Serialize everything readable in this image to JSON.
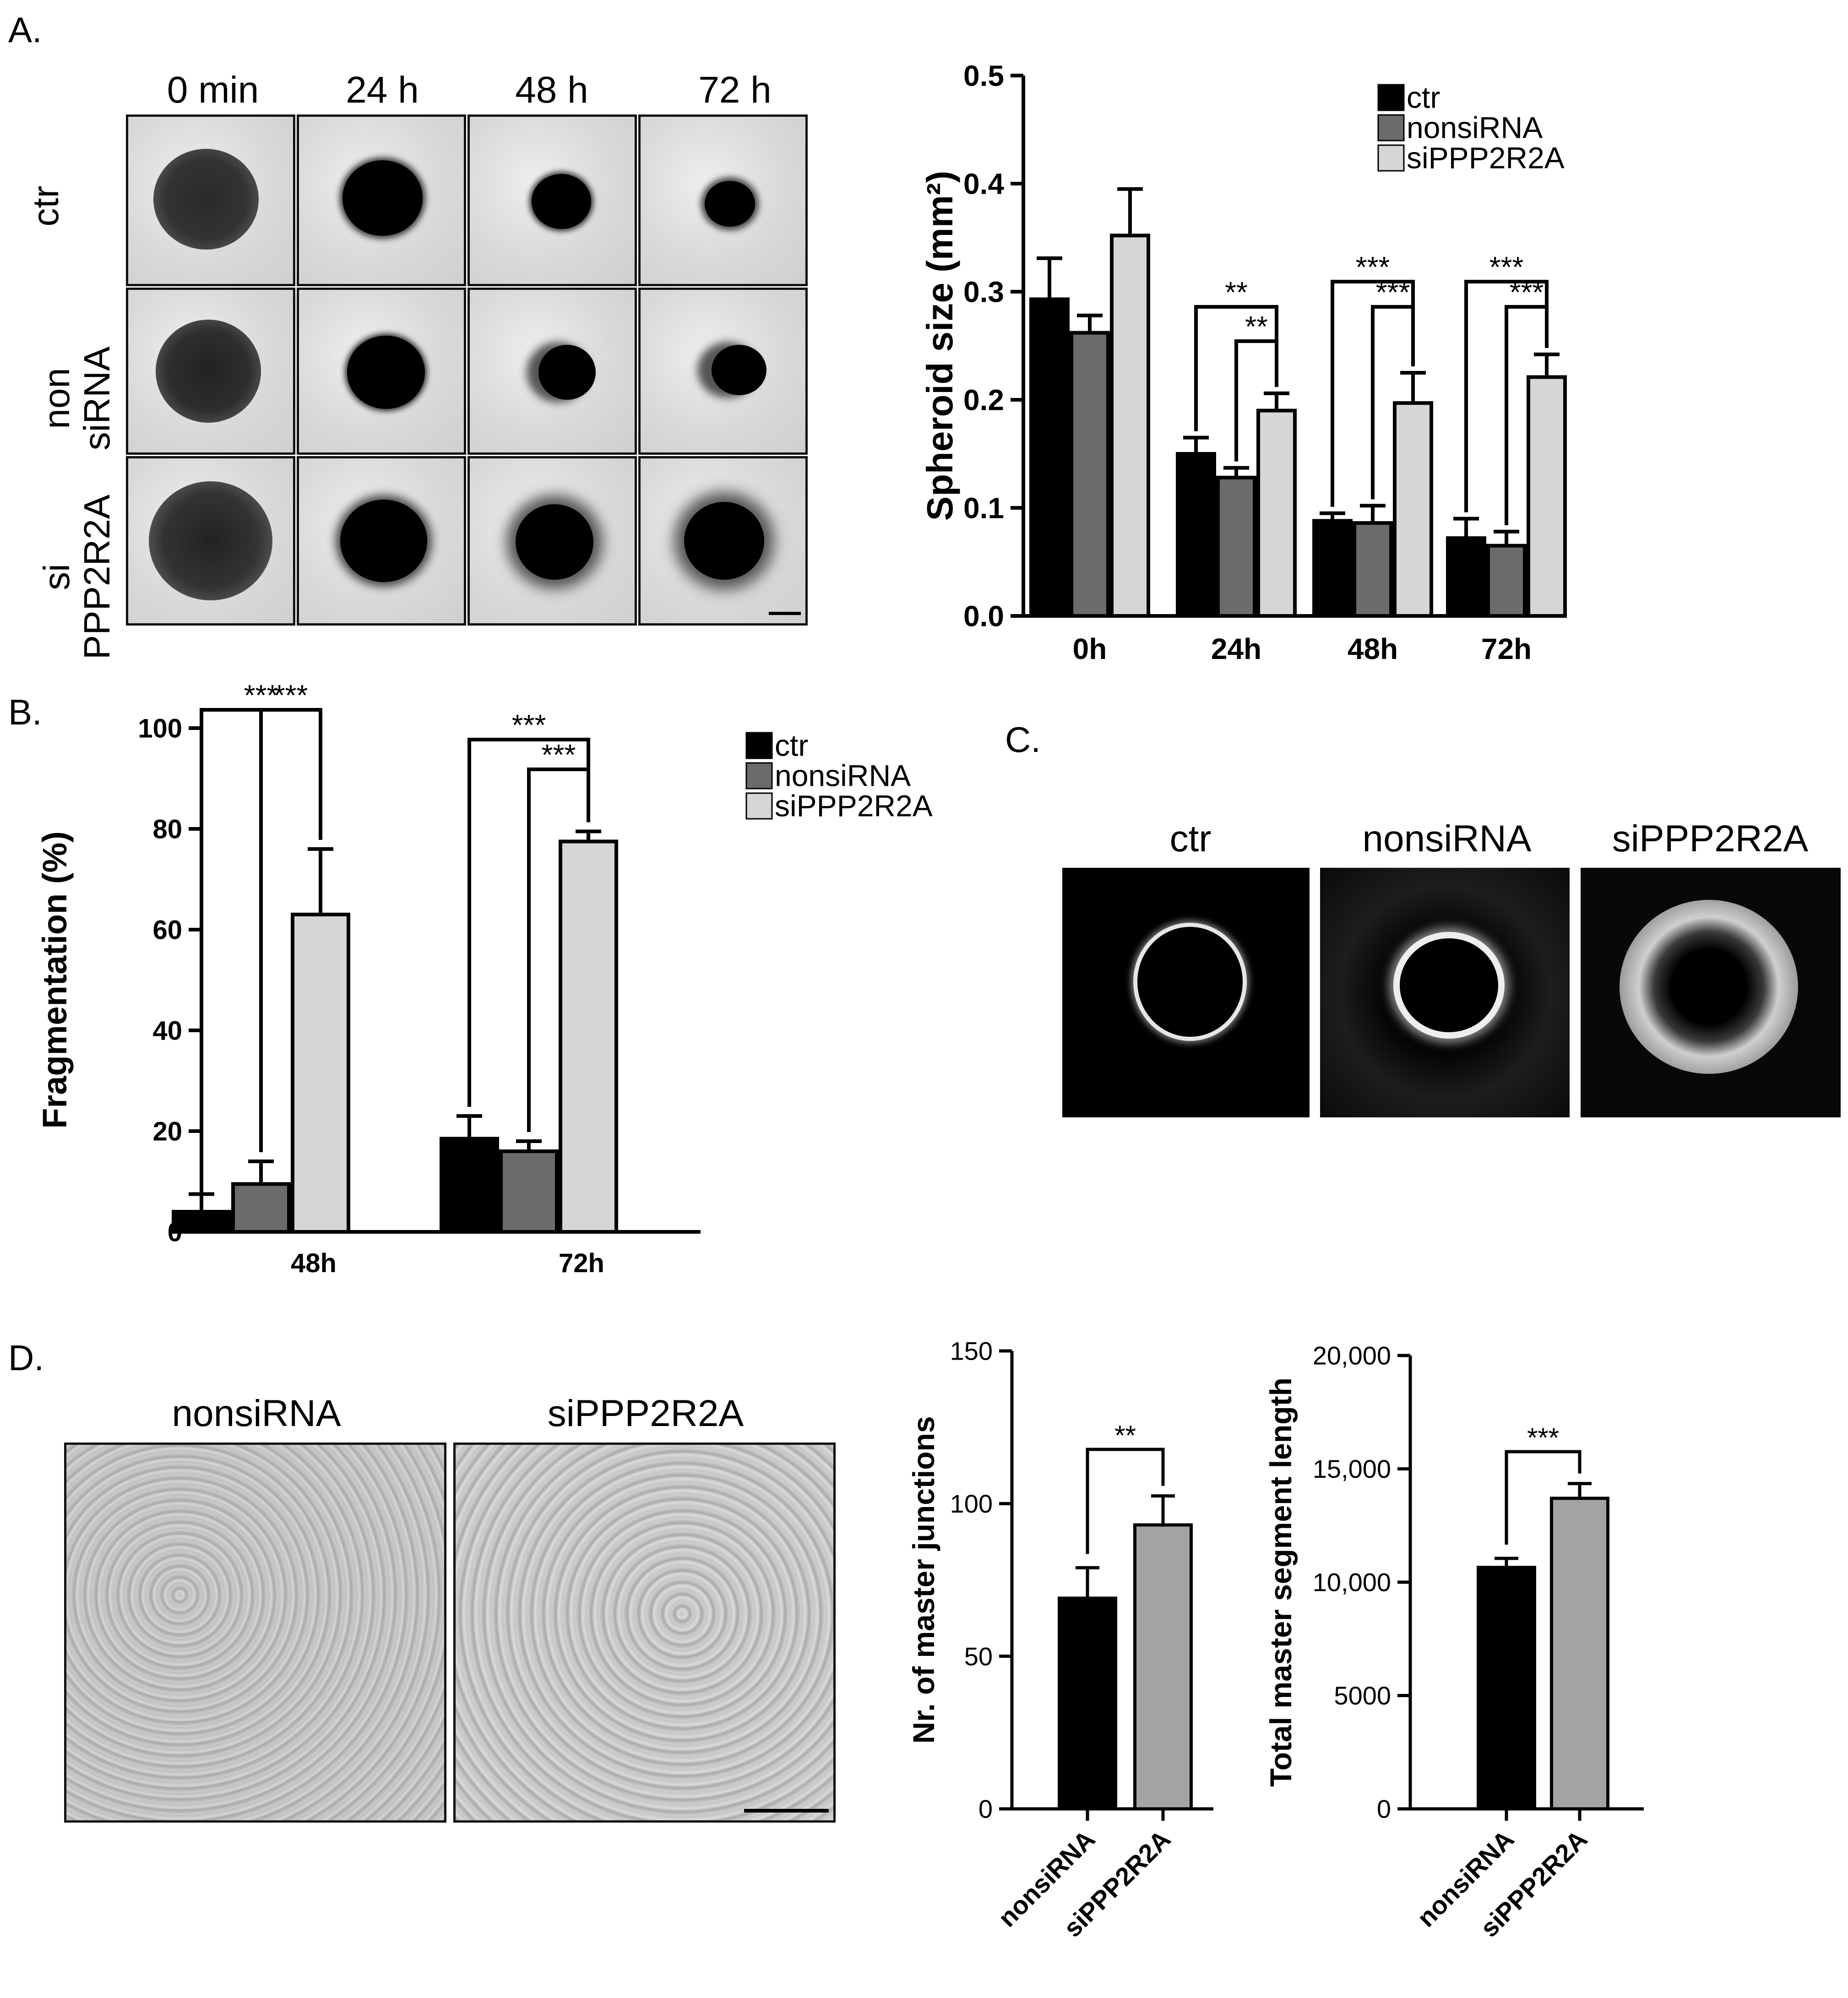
{
  "panels": {
    "A": {
      "letter": "A.",
      "time_headers": [
        "0 min",
        "24 h",
        "48 h",
        "72 h"
      ],
      "row_labels": [
        [
          "ctr"
        ],
        [
          "non",
          "siRNA"
        ],
        [
          "si",
          "PPP2R2A"
        ]
      ]
    },
    "B": {
      "letter": "B."
    },
    "C": {
      "letter": "C.",
      "headers": [
        "ctr",
        "nonsiRNA",
        "siPPP2R2A"
      ]
    },
    "D": {
      "letter": "D.",
      "headers": [
        "nonsiRNA",
        "siPPP2R2A"
      ]
    }
  },
  "colors": {
    "ctr": "#000000",
    "nonsiRNA": "#6b6b6b",
    "siPPP2R2A": "#d6d6d6",
    "siPPP2R2A_D": "#a3a3a3"
  },
  "chart_data": [
    {
      "id": "A",
      "type": "bar",
      "categories": [
        "0h",
        "24h",
        "48h",
        "72h"
      ],
      "series": [
        {
          "name": "ctr",
          "values": [
            0.293,
            0.15,
            0.088,
            0.072
          ],
          "errors": [
            0.038,
            0.015,
            0.007,
            0.018
          ]
        },
        {
          "name": "nonsiRNA",
          "values": [
            0.262,
            0.128,
            0.086,
            0.065
          ],
          "errors": [
            0.016,
            0.009,
            0.016,
            0.013
          ]
        },
        {
          "name": "siPPP2R2A",
          "values": [
            0.352,
            0.19,
            0.197,
            0.221
          ],
          "errors": [
            0.043,
            0.016,
            0.028,
            0.021
          ]
        }
      ],
      "ylabel": "Spheroid size (mm²)",
      "yticks": [
        "0.0",
        "0.1",
        "0.2",
        "0.3",
        "0.4",
        "0.5"
      ],
      "ylim": [
        0,
        0.5
      ],
      "legend": "top-right",
      "significance": [
        {
          "category": "24h",
          "pair": [
            "ctr",
            "siPPP2R2A"
          ],
          "label": "**"
        },
        {
          "category": "24h",
          "pair": [
            "nonsiRNA",
            "siPPP2R2A"
          ],
          "label": "**"
        },
        {
          "category": "48h",
          "pair": [
            "ctr",
            "siPPP2R2A"
          ],
          "label": "***"
        },
        {
          "category": "48h",
          "pair": [
            "nonsiRNA",
            "siPPP2R2A"
          ],
          "label": "***"
        },
        {
          "category": "72h",
          "pair": [
            "ctr",
            "siPPP2R2A"
          ],
          "label": "***"
        },
        {
          "category": "72h",
          "pair": [
            "nonsiRNA",
            "siPPP2R2A"
          ],
          "label": "***"
        }
      ]
    },
    {
      "id": "B",
      "type": "bar",
      "categories": [
        "48h",
        "72h"
      ],
      "series": [
        {
          "name": "ctr",
          "values": [
            4,
            18.5
          ],
          "errors": [
            3.5,
            4.5
          ]
        },
        {
          "name": "nonsiRNA",
          "values": [
            9.5,
            16
          ],
          "errors": [
            4.5,
            2
          ]
        },
        {
          "name": "siPPP2R2A",
          "values": [
            63,
            77.5
          ],
          "errors": [
            13,
            2
          ]
        }
      ],
      "ylabel": "Fragmentation (%)",
      "yticks": [
        "0",
        "20",
        "40",
        "60",
        "80",
        "100"
      ],
      "ylim": [
        0,
        100
      ],
      "legend": "top-right",
      "significance": [
        {
          "category": "48h",
          "pair": [
            "ctr",
            "siPPP2R2A"
          ],
          "label": "***"
        },
        {
          "category": "48h",
          "pair": [
            "nonsiRNA",
            "siPPP2R2A"
          ],
          "label": "***"
        },
        {
          "category": "72h",
          "pair": [
            "ctr",
            "siPPP2R2A"
          ],
          "label": "***"
        },
        {
          "category": "72h",
          "pair": [
            "nonsiRNA",
            "siPPP2R2A"
          ],
          "label": "***"
        }
      ]
    },
    {
      "id": "D1",
      "type": "bar",
      "categories": [
        "nonsiRNA",
        "siPPP2R2A"
      ],
      "values": [
        69,
        93
      ],
      "errors": [
        10,
        9.5
      ],
      "ylabel": "Nr. of master junctions",
      "yticks": [
        "0",
        "50",
        "100",
        "150"
      ],
      "ylim": [
        0,
        150
      ],
      "significance": [
        {
          "pair": [
            "nonsiRNA",
            "siPPP2R2A"
          ],
          "label": "**"
        }
      ]
    },
    {
      "id": "D2",
      "type": "bar",
      "categories": [
        "nonsiRNA",
        "siPPP2R2A"
      ],
      "values": [
        10650,
        13700
      ],
      "errors": [
        400,
        650
      ],
      "ylabel": "Total master segment length",
      "yticks": [
        "0",
        "5000",
        "10,000",
        "15,000",
        "20,000"
      ],
      "ylim": [
        0,
        20000
      ],
      "significance": [
        {
          "pair": [
            "nonsiRNA",
            "siPPP2R2A"
          ],
          "label": "***"
        }
      ]
    }
  ]
}
